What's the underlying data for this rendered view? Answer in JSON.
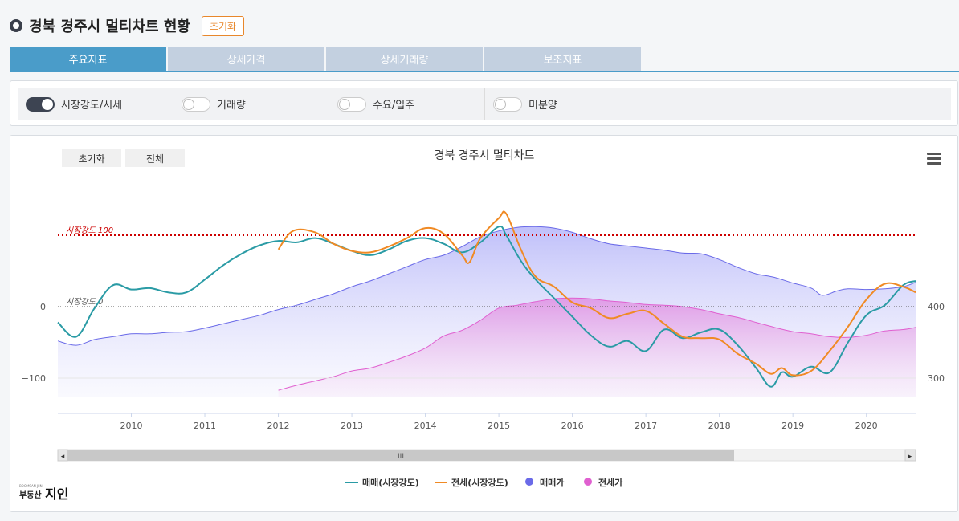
{
  "header": {
    "title": "경북 경주시 멀티차트 현황",
    "reset_label": "초기화"
  },
  "tabs": [
    {
      "label": "주요지표"
    },
    {
      "label": "상세가격"
    },
    {
      "label": "상세거래량"
    },
    {
      "label": "보조지표"
    }
  ],
  "toggles": [
    {
      "label": "시장강도/시세",
      "on": true
    },
    {
      "label": "거래량",
      "on": false
    },
    {
      "label": "수요/입주",
      "on": false
    },
    {
      "label": "미분양",
      "on": false
    }
  ],
  "chart_controls": {
    "reset_label": "초기화",
    "all_label": "전체"
  },
  "logo": {
    "text_small": "부동산",
    "text_big": "지인",
    "subtext": "BOOMSAN JIIN"
  },
  "chart_data": {
    "type": "line",
    "title": "경북 경주시 멀티차트",
    "x_ticks": [
      "2010",
      "2011",
      "2012",
      "2013",
      "2014",
      "2015",
      "2016",
      "2017",
      "2018",
      "2019",
      "2020"
    ],
    "xlim": [
      2009.0,
      2020.67
    ],
    "left_axis": {
      "ticks": [
        0,
        -100
      ],
      "ylim": [
        -150,
        220
      ]
    },
    "right_axis": {
      "ticks": [
        400,
        300
      ],
      "ylim": [
        215,
        540
      ]
    },
    "reference_lines": [
      {
        "label": "시장강도 100",
        "value": 100,
        "color": "#cc0000",
        "style": "dotted"
      },
      {
        "label": "시장강도 0",
        "value": 0,
        "color": "#555555",
        "style": "dotted"
      }
    ],
    "series": [
      {
        "name": "매매(시장강도)",
        "axis": "left",
        "kind": "line",
        "color": "#2a9ba5",
        "x": [
          2009.0,
          2009.25,
          2009.5,
          2009.75,
          2010.0,
          2010.25,
          2010.5,
          2010.75,
          2011.0,
          2011.25,
          2011.5,
          2011.75,
          2012.0,
          2012.25,
          2012.5,
          2012.75,
          2013.0,
          2013.25,
          2013.5,
          2013.75,
          2014.0,
          2014.25,
          2014.5,
          2014.75,
          2015.0,
          2015.1,
          2015.3,
          2015.5,
          2015.75,
          2016.0,
          2016.25,
          2016.5,
          2016.75,
          2017.0,
          2017.25,
          2017.5,
          2017.75,
          2018.0,
          2018.25,
          2018.5,
          2018.7,
          2018.85,
          2019.0,
          2019.25,
          2019.5,
          2019.75,
          2020.0,
          2020.25,
          2020.5,
          2020.67
        ],
        "y": [
          -22,
          -42,
          -2,
          30,
          24,
          26,
          20,
          20,
          38,
          58,
          74,
          86,
          92,
          90,
          96,
          88,
          78,
          72,
          80,
          92,
          96,
          88,
          76,
          90,
          112,
          100,
          64,
          38,
          12,
          -14,
          -40,
          -56,
          -48,
          -62,
          -32,
          -44,
          -36,
          -32,
          -54,
          -86,
          -112,
          -92,
          -98,
          -84,
          -92,
          -50,
          -12,
          2,
          30,
          36
        ]
      },
      {
        "name": "전세(시장강도)",
        "axis": "left",
        "kind": "line",
        "color": "#f08a24",
        "x": [
          2012.0,
          2012.2,
          2012.5,
          2012.75,
          2013.0,
          2013.25,
          2013.5,
          2013.75,
          2014.0,
          2014.25,
          2014.5,
          2014.6,
          2014.75,
          2015.0,
          2015.1,
          2015.3,
          2015.5,
          2015.75,
          2016.0,
          2016.25,
          2016.5,
          2016.75,
          2017.0,
          2017.25,
          2017.5,
          2017.75,
          2018.0,
          2018.25,
          2018.5,
          2018.7,
          2018.85,
          2019.0,
          2019.25,
          2019.5,
          2019.75,
          2020.0,
          2020.25,
          2020.5,
          2020.67
        ],
        "y": [
          80,
          106,
          104,
          88,
          78,
          76,
          84,
          96,
          110,
          102,
          72,
          62,
          96,
          124,
          130,
          80,
          42,
          28,
          6,
          -2,
          -16,
          -10,
          -6,
          -24,
          -42,
          -44,
          -46,
          -66,
          -80,
          -94,
          -86,
          -96,
          -90,
          -62,
          -28,
          10,
          32,
          28,
          20
        ]
      },
      {
        "name": "매매가",
        "axis": "right",
        "kind": "area",
        "color": "#6a6ae8",
        "x": [
          2009.0,
          2009.25,
          2009.5,
          2009.75,
          2010.0,
          2010.25,
          2010.5,
          2010.75,
          2011.0,
          2011.25,
          2011.5,
          2011.75,
          2012.0,
          2012.25,
          2012.5,
          2012.75,
          2013.0,
          2013.25,
          2013.5,
          2013.75,
          2014.0,
          2014.25,
          2014.5,
          2014.75,
          2015.0,
          2015.25,
          2015.5,
          2015.75,
          2016.0,
          2016.25,
          2016.5,
          2016.75,
          2017.0,
          2017.25,
          2017.5,
          2017.75,
          2018.0,
          2018.25,
          2018.5,
          2018.75,
          2019.0,
          2019.25,
          2019.4,
          2019.6,
          2019.75,
          2020.0,
          2020.25,
          2020.5,
          2020.67
        ],
        "y": [
          352,
          346,
          354,
          358,
          362,
          362,
          364,
          365,
          370,
          376,
          382,
          388,
          396,
          402,
          410,
          418,
          428,
          436,
          446,
          456,
          466,
          472,
          484,
          498,
          506,
          511,
          512,
          510,
          504,
          495,
          488,
          485,
          482,
          479,
          475,
          474,
          466,
          455,
          446,
          441,
          433,
          426,
          416,
          422,
          425,
          424,
          425,
          428,
          434
        ]
      },
      {
        "name": "전세가",
        "axis": "right",
        "kind": "area",
        "color": "#e060d0",
        "x": [
          2012.0,
          2012.25,
          2012.5,
          2012.75,
          2013.0,
          2013.25,
          2013.5,
          2013.75,
          2014.0,
          2014.25,
          2014.5,
          2014.75,
          2015.0,
          2015.25,
          2015.5,
          2015.75,
          2016.0,
          2016.25,
          2016.5,
          2016.75,
          2017.0,
          2017.25,
          2017.5,
          2017.75,
          2018.0,
          2018.25,
          2018.5,
          2018.75,
          2019.0,
          2019.25,
          2019.5,
          2019.75,
          2020.0,
          2020.25,
          2020.5,
          2020.67
        ],
        "y": [
          283,
          290,
          296,
          302,
          310,
          314,
          322,
          331,
          342,
          359,
          367,
          381,
          398,
          402,
          407,
          411,
          412,
          411,
          408,
          406,
          403,
          402,
          400,
          396,
          390,
          385,
          378,
          371,
          365,
          362,
          358,
          357,
          360,
          366,
          368,
          371
        ]
      }
    ],
    "legend": {
      "position": "bottom-center",
      "items": [
        "매매(시장강도)",
        "전세(시장강도)",
        "매매가",
        "전세가"
      ]
    },
    "navigator": {
      "range": "full",
      "scrollbar": true,
      "handle_glyph": "III",
      "left_arrow": "◂",
      "right_arrow": "▸"
    }
  }
}
